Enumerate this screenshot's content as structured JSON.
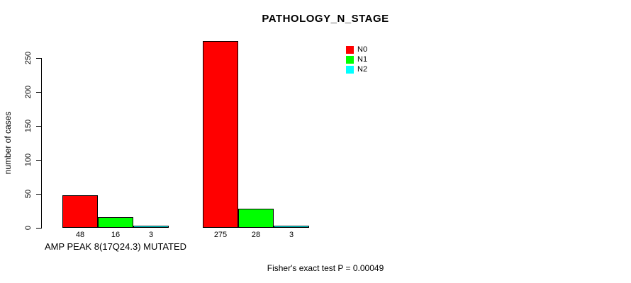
{
  "chart_data": {
    "type": "bar",
    "title": "PATHOLOGY_N_STAGE",
    "ylabel": "number of cases",
    "xlabel": "",
    "ylim": [
      0,
      275
    ],
    "yticks": [
      0,
      50,
      100,
      150,
      200,
      250
    ],
    "grid": "off",
    "legend_position": "top-right",
    "categories": [
      "AMP PEAK 8(17Q24.3) MUTATED",
      ""
    ],
    "groups": [
      {
        "label": "AMP PEAK 8(17Q24.3) MUTATED",
        "values": [
          48,
          16,
          3
        ]
      },
      {
        "label": "",
        "values": [
          275,
          28,
          3
        ]
      }
    ],
    "series": [
      {
        "name": "N0",
        "color": "#ff0000"
      },
      {
        "name": "N1",
        "color": "#00ff00"
      },
      {
        "name": "N2",
        "color": "#00ffff"
      }
    ],
    "bar_border_color": "#000000",
    "background_color": "#ffffff",
    "annotation": "Fisher's exact test P = 0.00049"
  }
}
